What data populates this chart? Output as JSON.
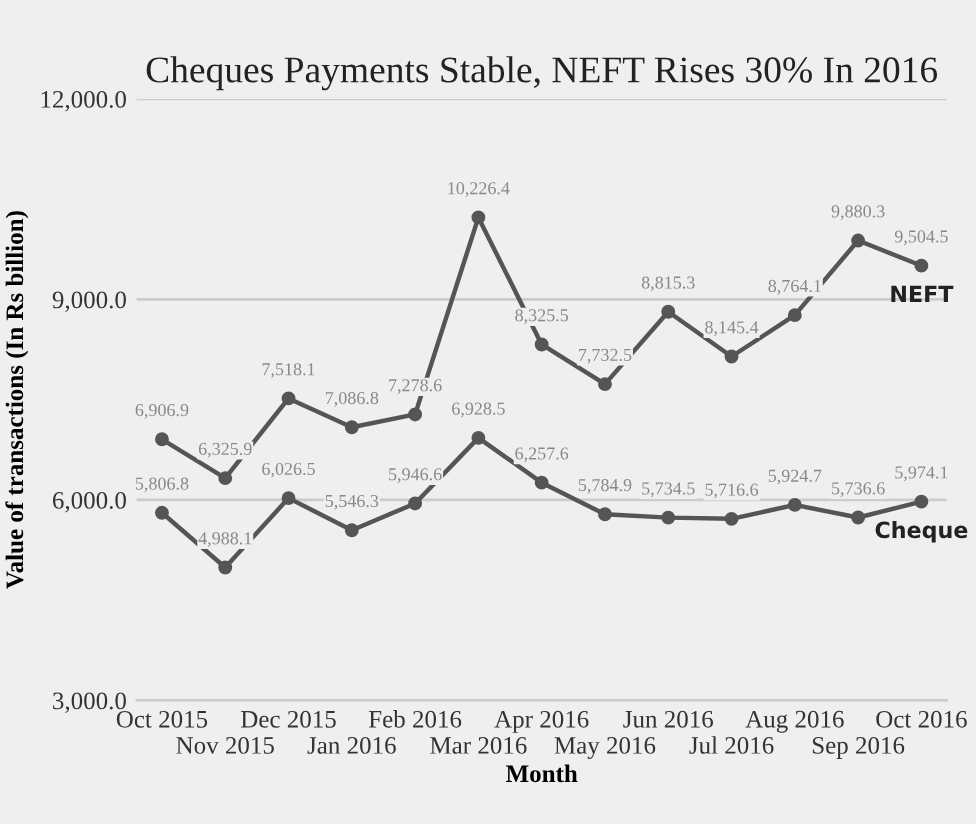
{
  "chart_data": {
    "type": "line",
    "title": "Cheques Payments Stable, NEFT Rises 30% In 2016",
    "xlabel": "Month",
    "ylabel": "Value of transactions (In Rs billion)",
    "categories": [
      "Oct 2015",
      "Nov 2015",
      "Dec 2015",
      "Jan 2016",
      "Feb 2016",
      "Mar 2016",
      "Apr 2016",
      "May 2016",
      "Jun 2016",
      "Jul 2016",
      "Aug 2016",
      "Sep 2016",
      "Oct 2016"
    ],
    "series": [
      {
        "name": "NEFT",
        "color": "#555555",
        "values": [
          6906.9,
          6325.9,
          7518.1,
          7086.8,
          7278.6,
          10226.4,
          8325.5,
          7732.5,
          8815.3,
          8145.4,
          8764.1,
          9880.3,
          9504.5
        ],
        "value_labels": [
          "6,906.9",
          "6,325.9",
          "7,518.1",
          "7,086.8",
          "7,278.6",
          "10,226.4",
          "8,325.5",
          "7,732.5",
          "8,815.3",
          "8,145.4",
          "8,764.1",
          "9,880.3",
          "9,504.5"
        ]
      },
      {
        "name": "Cheque",
        "color": "#555555",
        "values": [
          5806.8,
          4988.1,
          6026.5,
          5546.3,
          5946.6,
          6928.5,
          6257.6,
          5784.9,
          5734.5,
          5716.6,
          5924.7,
          5736.6,
          5974.1
        ],
        "value_labels": [
          "5,806.8",
          "4,988.1",
          "6,026.5",
          "5,546.3",
          "5,946.6",
          "6,928.5",
          "6,257.6",
          "5,784.9",
          "5,734.5",
          "5,716.6",
          "5,924.7",
          "5,736.6",
          "5,974.1"
        ]
      }
    ],
    "ylim": [
      3000,
      12000
    ],
    "yticks": [
      {
        "value": 3000,
        "label": "3,000.0"
      },
      {
        "value": 6000,
        "label": "6,000.0"
      },
      {
        "value": 9000,
        "label": "9,000.0"
      },
      {
        "value": 12000,
        "label": "12,000.0"
      }
    ],
    "grid": "y",
    "marker": "circle",
    "line_style": "solid"
  }
}
